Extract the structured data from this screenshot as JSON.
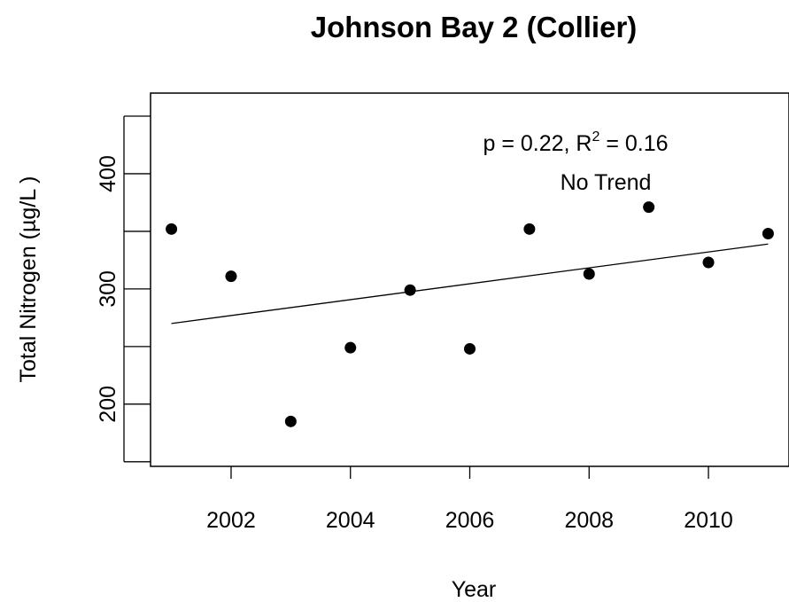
{
  "chart_data": {
    "type": "scatter",
    "title": "Johnson Bay 2 (Collier)",
    "xlabel": "Year",
    "ylabel": "Total Nitrogen (µg/L )",
    "xlim": [
      2000.65,
      2011.35
    ],
    "ylim": [
      146,
      470
    ],
    "x_ticks": [
      2002,
      2004,
      2006,
      2008,
      2010
    ],
    "y_ticks": [
      200,
      300,
      400
    ],
    "x_tick_labels": [
      "2002",
      "2004",
      "2006",
      "2008",
      "2010"
    ],
    "y_tick_labels": [
      "200",
      "300",
      "400"
    ],
    "points": [
      {
        "x": 2001,
        "y": 352
      },
      {
        "x": 2002,
        "y": 311
      },
      {
        "x": 2003,
        "y": 185
      },
      {
        "x": 2004,
        "y": 249
      },
      {
        "x": 2005,
        "y": 299
      },
      {
        "x": 2006,
        "y": 248
      },
      {
        "x": 2007,
        "y": 352
      },
      {
        "x": 2008,
        "y": 313
      },
      {
        "x": 2009,
        "y": 371
      },
      {
        "x": 2010,
        "y": 323
      },
      {
        "x": 2011,
        "y": 348
      }
    ],
    "trend_line": {
      "x": [
        2001,
        2011
      ],
      "y": [
        270,
        339
      ]
    },
    "annotation": {
      "stats_prefix": "p = 0.22, R",
      "stats_sup": "2",
      "stats_suffix": " = 0.16",
      "trend_label": "No Trend"
    },
    "grid": false
  }
}
